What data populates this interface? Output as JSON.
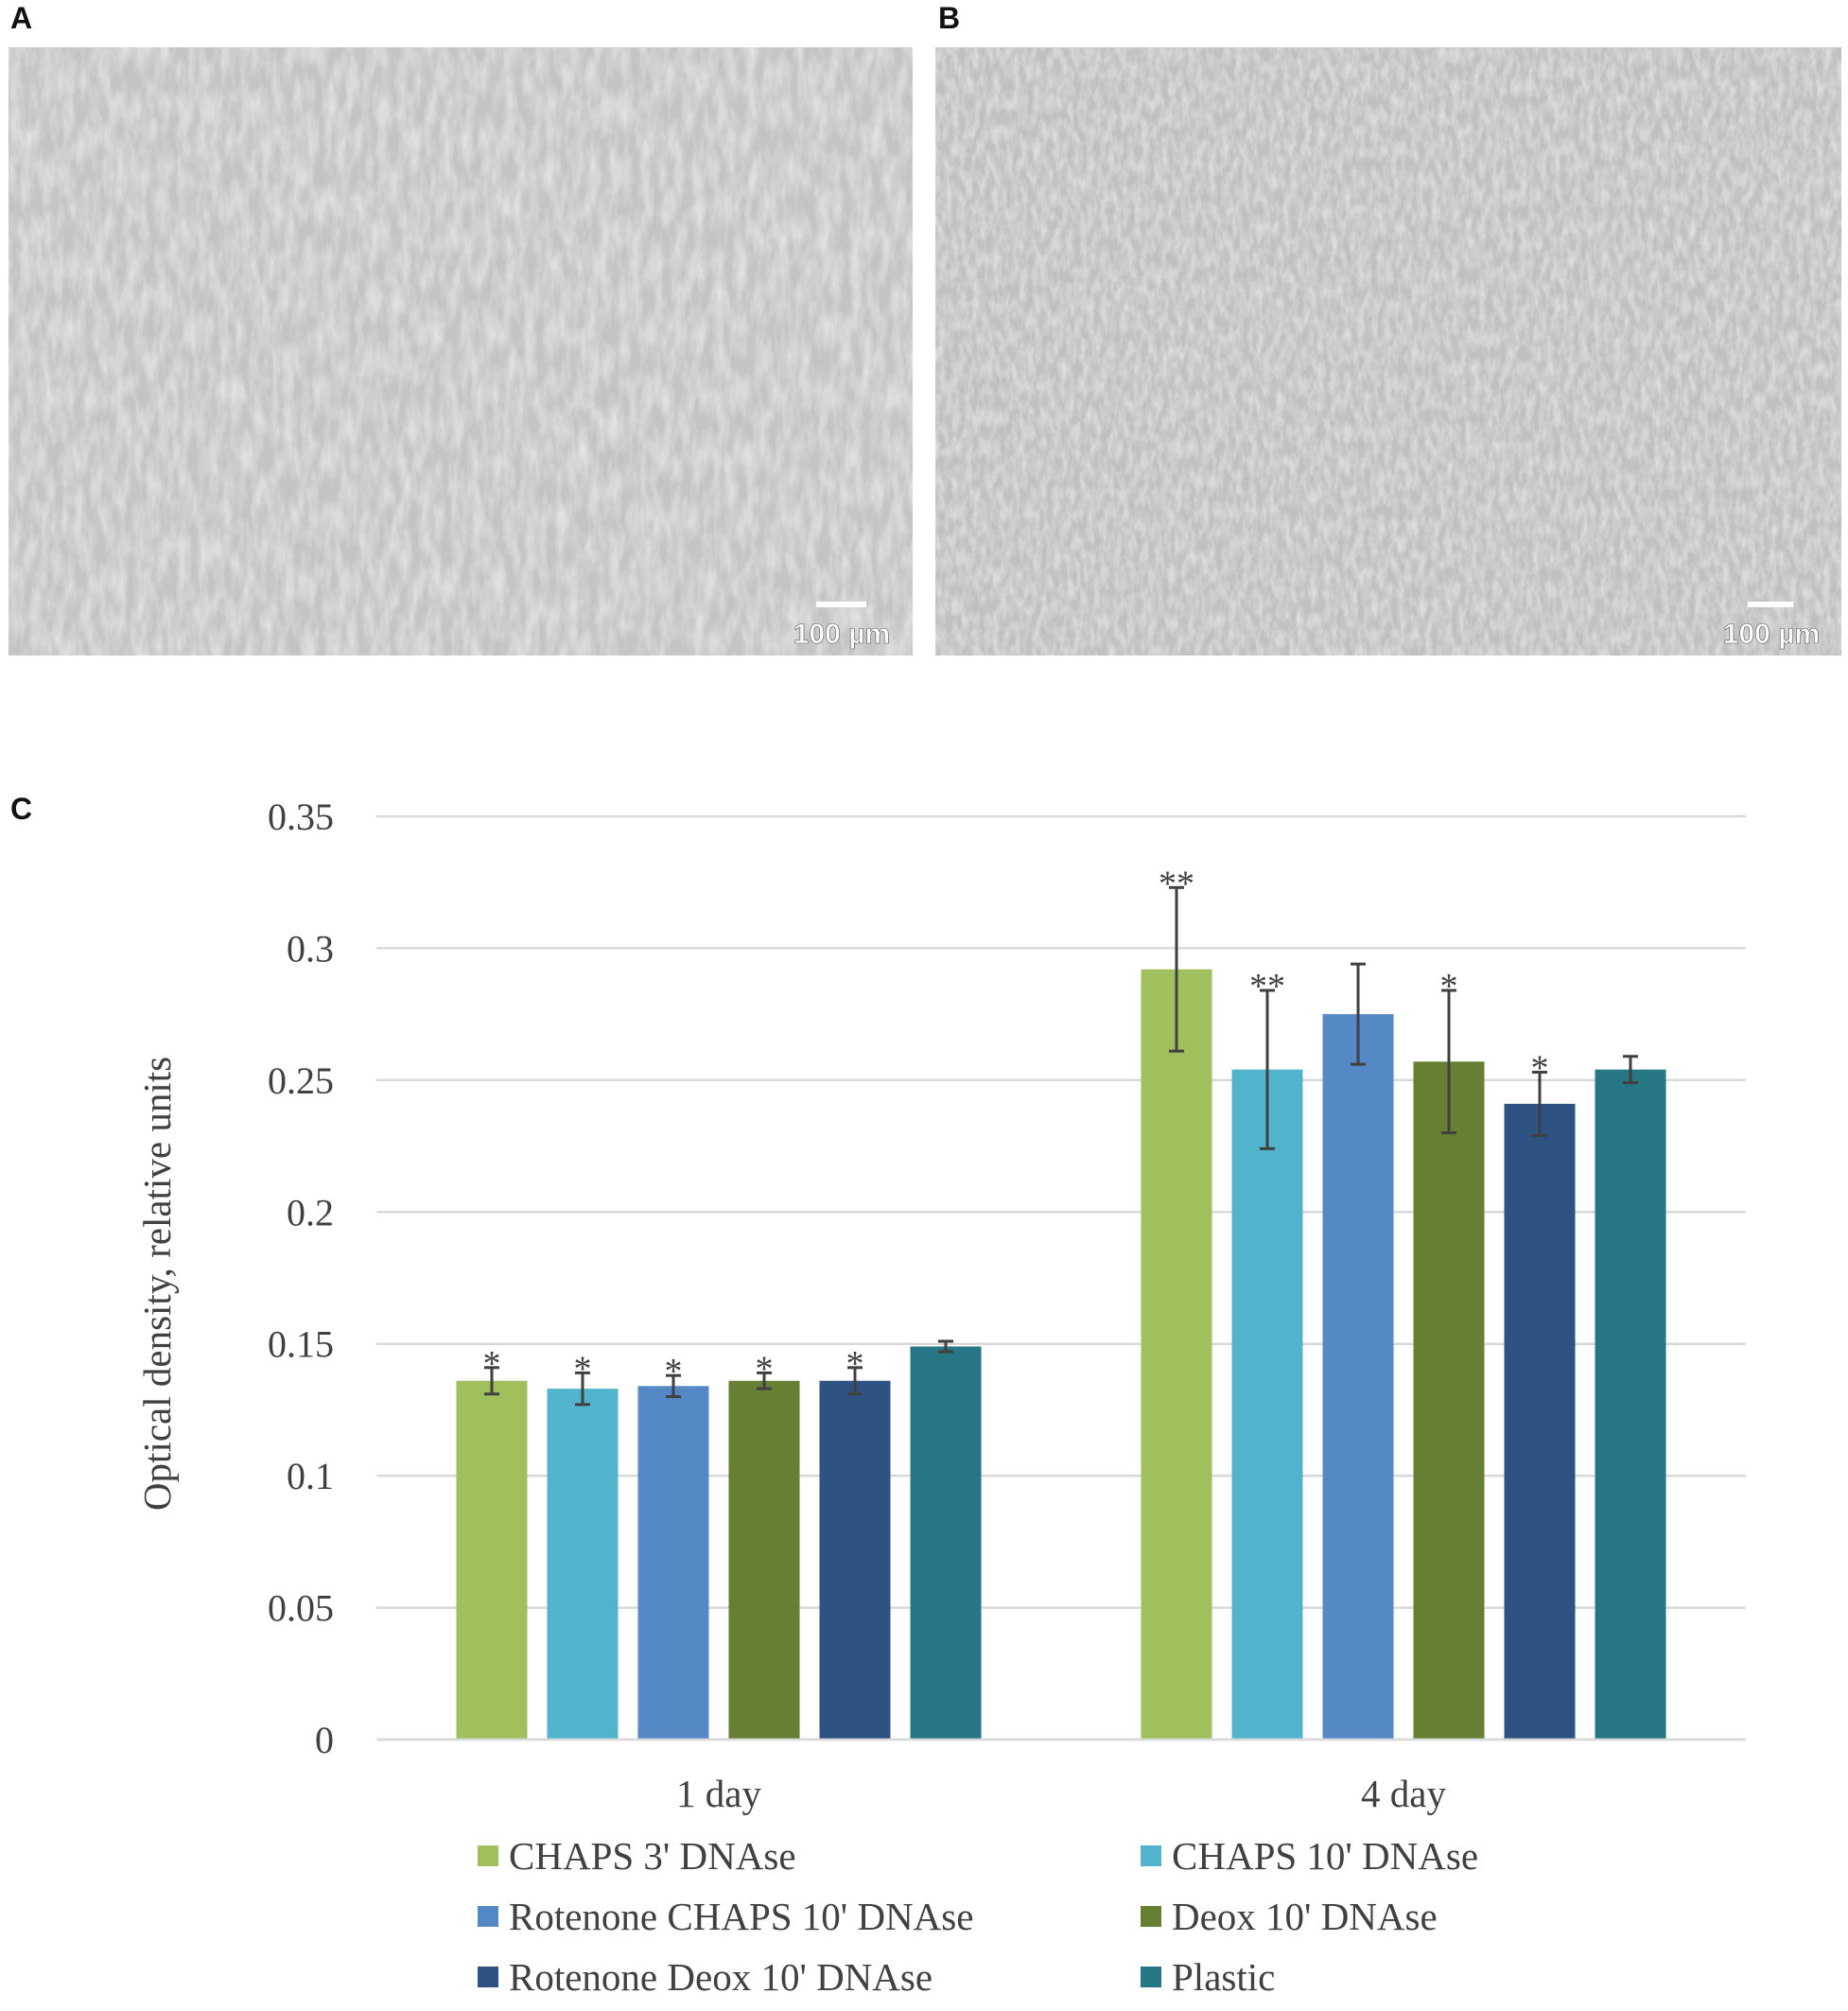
{
  "panels": [
    {
      "label": "A",
      "scale_bar": "100 µm"
    },
    {
      "label": "B",
      "scale_bar": "100 µm"
    }
  ],
  "chart_data": {
    "type": "bar",
    "panel_label": "C",
    "ylabel": "Optical density, relative units",
    "categories": [
      "1 day",
      "4 day"
    ],
    "ylim": [
      0,
      0.35
    ],
    "yticks": [
      0,
      0.05,
      0.1,
      0.15,
      0.2,
      0.25,
      0.3,
      0.35
    ],
    "grid": true,
    "legend": "bottom",
    "series": [
      {
        "name": "CHAPS 3' DNAse",
        "color": "#9fc05c",
        "values": [
          0.136,
          0.292
        ],
        "errors": [
          0.005,
          0.031
        ],
        "significance": [
          "*",
          "**"
        ]
      },
      {
        "name": "CHAPS 10' DNAse",
        "color": "#52b4cc",
        "values": [
          0.133,
          0.254
        ],
        "errors": [
          0.006,
          0.03
        ],
        "significance": [
          "*",
          "**"
        ]
      },
      {
        "name": "Rotenone CHAPS 10' DNAse",
        "color": "#5589c6",
        "values": [
          0.134,
          0.275
        ],
        "errors": [
          0.004,
          0.019
        ],
        "significance": [
          "*",
          null
        ]
      },
      {
        "name": "Deox 10' DNAse",
        "color": "#677f32",
        "values": [
          0.136,
          0.257
        ],
        "errors": [
          0.003,
          0.027
        ],
        "significance": [
          "*",
          "*"
        ]
      },
      {
        "name": "Rotenone Deox 10' DNAse",
        "color": "#2e5382",
        "values": [
          0.136,
          0.241
        ],
        "errors": [
          0.005,
          0.012
        ],
        "significance": [
          "*",
          "*"
        ]
      },
      {
        "name": "Plastic",
        "color": "#267685",
        "values": [
          0.149,
          0.254
        ],
        "errors": [
          0.002,
          0.005
        ],
        "significance": [
          null,
          null
        ]
      }
    ]
  }
}
